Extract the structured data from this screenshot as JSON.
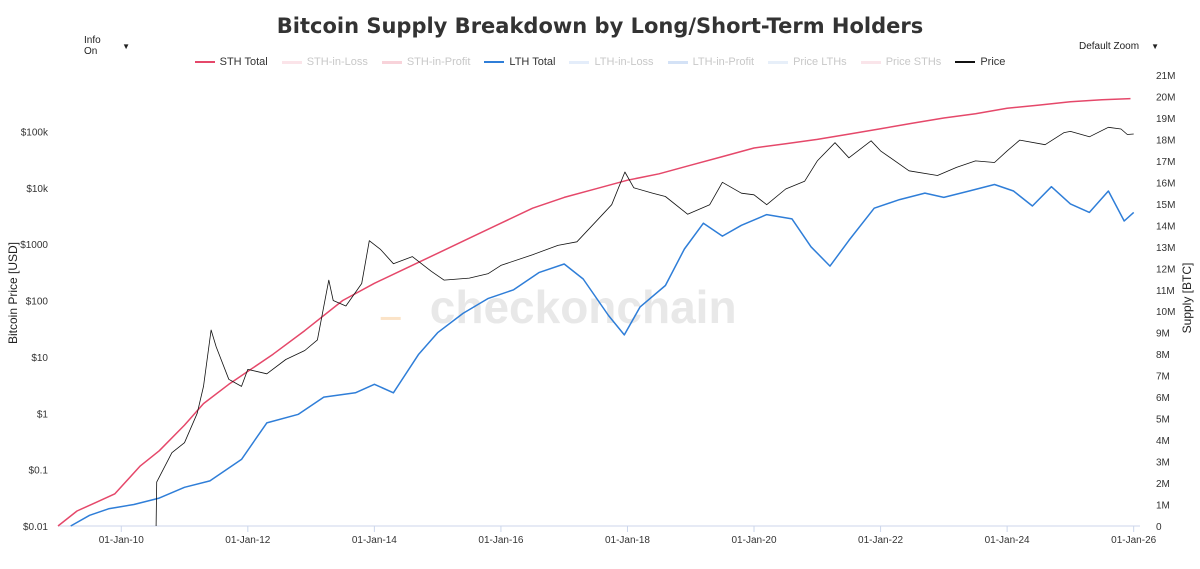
{
  "chart_data": {
    "type": "line",
    "title": "Bitcoin Supply Breakdown by Long/Short-Term Holders",
    "xlabel": "",
    "ylabel_left": "Bitcoin Price [USD]",
    "ylabel_right": "Supply [BTC]",
    "y_left_scale": "log",
    "y_left_range": [
      0.01,
      1000000
    ],
    "y_right_range": [
      0,
      21000000
    ],
    "x_range": [
      2009.0,
      2026.1
    ],
    "x_ticks": [
      {
        "x": 2010,
        "label": "01-Jan-10"
      },
      {
        "x": 2012,
        "label": "01-Jan-12"
      },
      {
        "x": 2014,
        "label": "01-Jan-14"
      },
      {
        "x": 2016,
        "label": "01-Jan-16"
      },
      {
        "x": 2018,
        "label": "01-Jan-18"
      },
      {
        "x": 2020,
        "label": "01-Jan-20"
      },
      {
        "x": 2022,
        "label": "01-Jan-22"
      },
      {
        "x": 2024,
        "label": "01-Jan-24"
      },
      {
        "x": 2026,
        "label": "01-Jan-26"
      }
    ],
    "y_left_ticks": [
      {
        "v": 0.01,
        "label": "$0.01"
      },
      {
        "v": 0.1,
        "label": "$0.1"
      },
      {
        "v": 1,
        "label": "$1"
      },
      {
        "v": 10,
        "label": "$10"
      },
      {
        "v": 100,
        "label": "$100"
      },
      {
        "v": 1000,
        "label": "$1000"
      },
      {
        "v": 10000,
        "label": "$10k"
      },
      {
        "v": 100000,
        "label": "$100k"
      }
    ],
    "y_right_ticks": [
      {
        "v": 0,
        "label": "0"
      },
      {
        "v": 1000000,
        "label": "1M"
      },
      {
        "v": 2000000,
        "label": "2M"
      },
      {
        "v": 3000000,
        "label": "3M"
      },
      {
        "v": 4000000,
        "label": "4M"
      },
      {
        "v": 5000000,
        "label": "5M"
      },
      {
        "v": 6000000,
        "label": "6M"
      },
      {
        "v": 7000000,
        "label": "7M"
      },
      {
        "v": 8000000,
        "label": "8M"
      },
      {
        "v": 9000000,
        "label": "9M"
      },
      {
        "v": 10000000,
        "label": "10M"
      },
      {
        "v": 11000000,
        "label": "11M"
      },
      {
        "v": 12000000,
        "label": "12M"
      },
      {
        "v": 13000000,
        "label": "13M"
      },
      {
        "v": 14000000,
        "label": "14M"
      },
      {
        "v": 15000000,
        "label": "15M"
      },
      {
        "v": 16000000,
        "label": "16M"
      },
      {
        "v": 17000000,
        "label": "17M"
      },
      {
        "v": 18000000,
        "label": "18M"
      },
      {
        "v": 19000000,
        "label": "19M"
      },
      {
        "v": 20000000,
        "label": "20M"
      },
      {
        "v": 21000000,
        "label": "21M"
      }
    ],
    "watermark": "checkonchain",
    "series": [
      {
        "name": "STH Total",
        "axis": "right",
        "color": "#e5486a",
        "visible": true,
        "points": [
          [
            2009.0,
            0
          ],
          [
            2009.3,
            700000
          ],
          [
            2009.6,
            1100000
          ],
          [
            2009.9,
            1500000
          ],
          [
            2010.3,
            2800000
          ],
          [
            2010.6,
            3500000
          ],
          [
            2011.0,
            4700000
          ],
          [
            2011.3,
            5700000
          ],
          [
            2011.7,
            6600000
          ],
          [
            2012.0,
            7200000
          ],
          [
            2012.4,
            8000000
          ],
          [
            2012.9,
            9100000
          ],
          [
            2013.5,
            10500000
          ],
          [
            2014.0,
            11300000
          ],
          [
            2014.5,
            12000000
          ],
          [
            2015.0,
            12700000
          ],
          [
            2015.5,
            13400000
          ],
          [
            2016.0,
            14100000
          ],
          [
            2016.5,
            14800000
          ],
          [
            2017.0,
            15300000
          ],
          [
            2017.5,
            15700000
          ],
          [
            2018.0,
            16100000
          ],
          [
            2018.5,
            16400000
          ],
          [
            2019.0,
            16800000
          ],
          [
            2019.5,
            17200000
          ],
          [
            2020.0,
            17600000
          ],
          [
            2020.5,
            17800000
          ],
          [
            2021.0,
            18000000
          ],
          [
            2021.5,
            18250000
          ],
          [
            2022.0,
            18500000
          ],
          [
            2022.5,
            18750000
          ],
          [
            2023.0,
            19000000
          ],
          [
            2023.5,
            19200000
          ],
          [
            2024.0,
            19450000
          ],
          [
            2024.5,
            19600000
          ],
          [
            2025.0,
            19750000
          ],
          [
            2025.5,
            19850000
          ],
          [
            2025.95,
            19900000
          ]
        ]
      },
      {
        "name": "STH-in-Loss",
        "axis": "right",
        "color": "#f7c9d3",
        "visible": false
      },
      {
        "name": "STH-in-Profit",
        "axis": "right",
        "color": "#f2a7b5",
        "visible": false
      },
      {
        "name": "LTH Total",
        "axis": "right",
        "color": "#2f7ed8",
        "visible": true,
        "points": [
          [
            2009.2,
            0
          ],
          [
            2009.5,
            500000
          ],
          [
            2009.8,
            800000
          ],
          [
            2010.2,
            1000000
          ],
          [
            2010.6,
            1300000
          ],
          [
            2011.0,
            1800000
          ],
          [
            2011.4,
            2100000
          ],
          [
            2011.9,
            3100000
          ],
          [
            2012.3,
            4800000
          ],
          [
            2012.8,
            5200000
          ],
          [
            2013.2,
            6000000
          ],
          [
            2013.7,
            6200000
          ],
          [
            2014.0,
            6600000
          ],
          [
            2014.3,
            6200000
          ],
          [
            2014.7,
            8000000
          ],
          [
            2015.0,
            9000000
          ],
          [
            2015.4,
            9900000
          ],
          [
            2015.8,
            10600000
          ],
          [
            2016.2,
            11000000
          ],
          [
            2016.6,
            11800000
          ],
          [
            2017.0,
            12200000
          ],
          [
            2017.3,
            11500000
          ],
          [
            2017.7,
            9800000
          ],
          [
            2017.95,
            8900000
          ],
          [
            2018.2,
            10200000
          ],
          [
            2018.6,
            11200000
          ],
          [
            2018.9,
            12900000
          ],
          [
            2019.2,
            14100000
          ],
          [
            2019.5,
            13500000
          ],
          [
            2019.8,
            14000000
          ],
          [
            2020.2,
            14500000
          ],
          [
            2020.6,
            14300000
          ],
          [
            2020.9,
            13000000
          ],
          [
            2021.2,
            12100000
          ],
          [
            2021.5,
            13300000
          ],
          [
            2021.9,
            14800000
          ],
          [
            2022.3,
            15200000
          ],
          [
            2022.7,
            15500000
          ],
          [
            2023.0,
            15300000
          ],
          [
            2023.4,
            15600000
          ],
          [
            2023.8,
            15900000
          ],
          [
            2024.1,
            15600000
          ],
          [
            2024.4,
            14900000
          ],
          [
            2024.7,
            15800000
          ],
          [
            2025.0,
            15000000
          ],
          [
            2025.3,
            14600000
          ],
          [
            2025.6,
            15600000
          ],
          [
            2025.85,
            14200000
          ],
          [
            2026.0,
            14600000
          ]
        ]
      },
      {
        "name": "LTH-in-Loss",
        "axis": "right",
        "color": "#c9dcf5",
        "visible": false
      },
      {
        "name": "LTH-in-Profit",
        "axis": "right",
        "color": "#a9c6ee",
        "visible": false
      },
      {
        "name": "Price LTHs",
        "axis": "left",
        "color": "#cfe0f3",
        "visible": false
      },
      {
        "name": "Price STHs",
        "axis": "left",
        "color": "#f5cbd5",
        "visible": false
      },
      {
        "name": "Price",
        "axis": "left",
        "color": "#111111",
        "visible": true,
        "points": [
          [
            2010.55,
            0.01
          ],
          [
            2010.56,
            0.06
          ],
          [
            2010.8,
            0.2
          ],
          [
            2011.0,
            0.3
          ],
          [
            2011.2,
            1.0
          ],
          [
            2011.3,
            3.0
          ],
          [
            2011.42,
            30
          ],
          [
            2011.5,
            15
          ],
          [
            2011.7,
            4
          ],
          [
            2011.9,
            3
          ],
          [
            2012.0,
            6
          ],
          [
            2012.3,
            5
          ],
          [
            2012.6,
            9
          ],
          [
            2012.9,
            13
          ],
          [
            2013.1,
            20
          ],
          [
            2013.28,
            230
          ],
          [
            2013.35,
            100
          ],
          [
            2013.55,
            80
          ],
          [
            2013.8,
            200
          ],
          [
            2013.92,
            1150
          ],
          [
            2014.1,
            800
          ],
          [
            2014.3,
            450
          ],
          [
            2014.6,
            600
          ],
          [
            2014.9,
            330
          ],
          [
            2015.1,
            230
          ],
          [
            2015.5,
            250
          ],
          [
            2015.8,
            300
          ],
          [
            2016.0,
            420
          ],
          [
            2016.5,
            650
          ],
          [
            2016.9,
            950
          ],
          [
            2017.2,
            1100
          ],
          [
            2017.5,
            2500
          ],
          [
            2017.75,
            5000
          ],
          [
            2017.96,
            19000
          ],
          [
            2018.1,
            10000
          ],
          [
            2018.4,
            8000
          ],
          [
            2018.6,
            7000
          ],
          [
            2018.95,
            3400
          ],
          [
            2019.3,
            5000
          ],
          [
            2019.5,
            12500
          ],
          [
            2019.8,
            8000
          ],
          [
            2020.0,
            7500
          ],
          [
            2020.2,
            5000
          ],
          [
            2020.5,
            9500
          ],
          [
            2020.8,
            13000
          ],
          [
            2021.0,
            30000
          ],
          [
            2021.28,
            63000
          ],
          [
            2021.5,
            34000
          ],
          [
            2021.85,
            68000
          ],
          [
            2022.0,
            45000
          ],
          [
            2022.45,
            20000
          ],
          [
            2022.9,
            16500
          ],
          [
            2023.2,
            23000
          ],
          [
            2023.5,
            30000
          ],
          [
            2023.8,
            28000
          ],
          [
            2024.0,
            45000
          ],
          [
            2024.2,
            70000
          ],
          [
            2024.6,
            58000
          ],
          [
            2024.9,
            95000
          ],
          [
            2025.0,
            100000
          ],
          [
            2025.3,
            80000
          ],
          [
            2025.6,
            118000
          ],
          [
            2025.8,
            110000
          ],
          [
            2025.9,
            88000
          ],
          [
            2026.0,
            90000
          ]
        ]
      }
    ]
  },
  "controls": {
    "info_label": "Info On",
    "zoom_label": "Default Zoom",
    "dropdown_arrow": "▼"
  }
}
